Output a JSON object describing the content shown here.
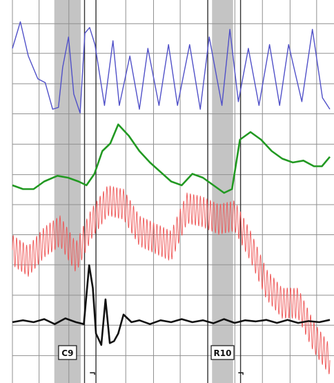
{
  "chart_data": {
    "type": "line",
    "title": "",
    "xlabel": "",
    "ylabel": "",
    "grid": true,
    "x_range": [
      0,
      60
    ],
    "y_range": [
      0,
      100
    ],
    "gridlines_x": [
      0,
      5.04,
      10.67,
      15.79,
      21.42,
      26.67,
      31.71,
      36.92,
      42.04,
      47.25,
      52.48,
      57.5
    ],
    "gridlines_y": [
      94.5,
      86.7,
      78.7,
      70.8,
      62.8,
      54.8,
      46.9,
      39.0,
      31.1,
      23.1,
      15.2,
      7.2
    ],
    "event_lines_x": [
      13.63,
      15.79,
      36.92,
      43.12
    ],
    "bands": [
      {
        "label": "C9",
        "x0": 7.92,
        "x1": 12.92
      },
      {
        "label": "R10",
        "x0": 37.73,
        "x1": 41.71
      }
    ],
    "marker_glyph": "¬",
    "markers_x": [
      15.13,
      43.17
    ],
    "series": [
      {
        "color": "#5050c8",
        "x": [
          0,
          1.5,
          3,
          4.8,
          6.2,
          7.6,
          8.7,
          9.5,
          10.6,
          11.6,
          12.8,
          13.7,
          14.6,
          15.6,
          17.4,
          19,
          20.2,
          22.2,
          24,
          25.6,
          27.7,
          29.5,
          31.2,
          33.5,
          35.5,
          37.2,
          39.6,
          41.1,
          42.7,
          44.6,
          46.6,
          48.6,
          50.5,
          52.2,
          54.7,
          56.7,
          58.6,
          60
        ],
        "y": [
          88,
          95,
          86,
          80,
          79,
          72,
          72.5,
          83,
          91,
          76,
          71,
          92,
          93.5,
          89,
          73,
          90,
          73,
          86,
          72,
          88,
          73,
          89,
          73,
          89,
          72,
          91,
          73,
          93,
          74,
          88,
          73,
          89,
          73,
          89,
          74,
          93,
          75,
          72
        ]
      },
      {
        "color": "#229922",
        "x": [
          0,
          2,
          4,
          6,
          8.5,
          10.5,
          12.5,
          14,
          15.5,
          17,
          18.5,
          20,
          22,
          24,
          26,
          28,
          30,
          32,
          34,
          36,
          38,
          40,
          41.5,
          43,
          45,
          47,
          49,
          51,
          53,
          55,
          57,
          58.5,
          60
        ],
        "y": [
          52,
          51,
          51,
          53,
          54.5,
          54,
          53,
          52,
          55,
          61,
          63,
          68,
          65,
          61,
          58,
          55.5,
          53,
          52,
          55,
          54,
          52,
          50,
          51,
          64,
          66,
          64,
          61,
          59,
          58,
          58.5,
          57,
          57,
          59.5
        ]
      },
      {
        "color": "#ee5555",
        "x": [
          0,
          3,
          6,
          9,
          12,
          15,
          18,
          21,
          24,
          27,
          30,
          33,
          36,
          39,
          42,
          45,
          48,
          51,
          54,
          57,
          60
        ],
        "y": [
          35,
          32,
          37,
          40,
          33,
          42,
          48,
          47,
          40,
          38,
          36,
          46,
          45,
          43,
          44,
          36,
          26,
          21,
          21,
          12,
          6
        ],
        "oscillation_amplitude": 4,
        "oscillation_cycles": 95
      },
      {
        "color": "#111111",
        "x": [
          0,
          2,
          4,
          6,
          8,
          10,
          12,
          13.5,
          14.5,
          15.2,
          15.8,
          16.8,
          17.6,
          18.4,
          19.2,
          20,
          21,
          22.5,
          24,
          26,
          28,
          30,
          32,
          34,
          36,
          38,
          40,
          42,
          44,
          46,
          48,
          50,
          52,
          54,
          56,
          58,
          60
        ],
        "y": [
          16,
          16.5,
          16,
          16.8,
          15.5,
          17,
          16,
          15.5,
          31,
          25,
          13,
          10,
          22,
          10.5,
          11,
          13,
          18,
          16,
          16.5,
          15.5,
          16.5,
          16,
          16.8,
          16,
          16.5,
          15.7,
          16.8,
          15.8,
          16.5,
          16.2,
          16.6,
          15.8,
          16.6,
          15.8,
          16.3,
          16,
          16.6
        ]
      }
    ]
  }
}
